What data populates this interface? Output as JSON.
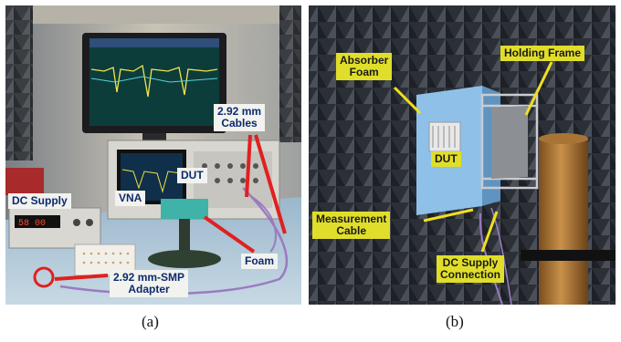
{
  "panel_a": {
    "caption": "(a)",
    "labels": {
      "dc_supply": "DC Supply",
      "vna": "VNA",
      "dut": "DUT",
      "cables": "2.92 mm\nCables",
      "foam": "Foam",
      "adapter": "2.92 mm-SMP\nAdapter"
    },
    "colors": {
      "label_text": "#0b2a6e",
      "arrow": "#e02020"
    }
  },
  "panel_b": {
    "caption": "(b)",
    "labels": {
      "absorber_foam": "Absorber\nFoam",
      "holding_frame": "Holding Frame",
      "dut": "DUT",
      "measurement_cable": "Measurement\nCable",
      "dc_supply_connection": "DC Supply\nConnection"
    },
    "colors": {
      "label_bg": "#e0de2a",
      "arrow": "#f0e020"
    }
  }
}
